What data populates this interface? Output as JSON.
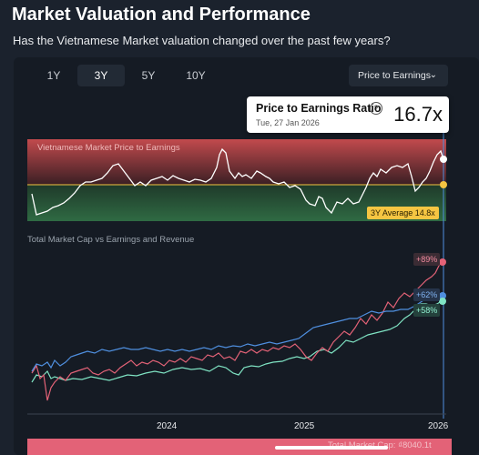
{
  "header": {
    "title": "Market Valuation and Performance",
    "subtitle": "Has the Vietnamese Market valuation changed over the past few years?"
  },
  "tabs": [
    {
      "label": "1Y",
      "active": false
    },
    {
      "label": "3Y",
      "active": true
    },
    {
      "label": "5Y",
      "active": false
    },
    {
      "label": "10Y",
      "active": false
    }
  ],
  "dropdown": {
    "selected": "Price to Earnings",
    "icon": "chevron-down-icon"
  },
  "tooltip": {
    "title": "Price to Earnings Ratio",
    "info_icon": "?",
    "date": "Tue, 27 Jan 2026",
    "value": "16.7x"
  },
  "pe_chart": {
    "label": "Vietnamese Market Price to Earnings",
    "average_label": "3Y Average 14.8x",
    "colors": {
      "high": "#b8494c",
      "low": "#2f6a43",
      "line": "#ffffff",
      "average": "#f5c542"
    }
  },
  "perf_chart": {
    "label": "Total Market Cap vs Earnings and Revenue",
    "tags": [
      "+89%",
      "+62%",
      "+58%"
    ],
    "x_ticks": [
      "2024",
      "2025",
      "2026"
    ],
    "colors": {
      "market_cap": "#e36277",
      "earnings": "#4f8fdf",
      "revenue": "#7fe3c3"
    }
  },
  "footer": {
    "text": "Total Market Cap: ₫8040.1t"
  }
}
